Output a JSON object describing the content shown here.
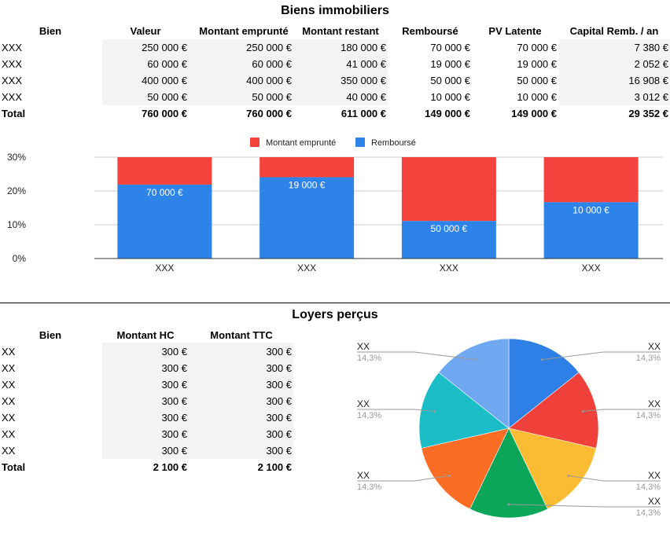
{
  "biens": {
    "title": "Biens immobiliers",
    "headers": [
      "Bien",
      "Valeur",
      "Montant emprunté",
      "Montant restant",
      "Remboursé",
      "PV Latente",
      "Capital Remb. / an"
    ],
    "rows": [
      [
        "XXX",
        "250 000 €",
        "250 000 €",
        "180 000 €",
        "70 000 €",
        "70 000 €",
        "7 380 €"
      ],
      [
        "XXX",
        "60 000 €",
        "60 000 €",
        "41 000 €",
        "19 000 €",
        "19 000 €",
        "2 052 €"
      ],
      [
        "XXX",
        "400 000 €",
        "400 000 €",
        "350 000 €",
        "50 000 €",
        "50 000 €",
        "16 908 €"
      ],
      [
        "XXX",
        "50 000 €",
        "50 000 €",
        "40 000 €",
        "10 000 €",
        "10 000 €",
        "3 012 €"
      ]
    ],
    "total": [
      "Total",
      "760 000 €",
      "760 000 €",
      "611 000 €",
      "149 000 €",
      "149 000 €",
      "29 352 €"
    ]
  },
  "loyers": {
    "title": "Loyers perçus",
    "headers": [
      "Bien",
      "Montant HC",
      "Montant TTC"
    ],
    "rows": [
      [
        "XX",
        "300 €",
        "300 €"
      ],
      [
        "XX",
        "300 €",
        "300 €"
      ],
      [
        "XX",
        "300 €",
        "300 €"
      ],
      [
        "XX",
        "300 €",
        "300 €"
      ],
      [
        "XX",
        "300 €",
        "300 €"
      ],
      [
        "XX",
        "300 €",
        "300 €"
      ],
      [
        "XX",
        "300 €",
        "300 €"
      ]
    ],
    "total": [
      "Total",
      "2 100 €",
      "2 100 €"
    ]
  },
  "chart_data": [
    {
      "type": "bar",
      "stacked": "percent",
      "title": "",
      "xlabel": "",
      "ylabel": "",
      "categories": [
        "XXX",
        "XXX",
        "XXX",
        "XXX"
      ],
      "series": [
        {
          "name": "Remboursé",
          "color": "#2e83e8",
          "values": [
            70000,
            19000,
            50000,
            10000
          ],
          "data_labels": [
            "70 000 €",
            "19 000 €",
            "50 000 €",
            "10 000 €"
          ]
        },
        {
          "name": "Montant emprunté",
          "color": "#f4433c",
          "values": [
            250000,
            60000,
            400000,
            50000
          ]
        }
      ],
      "legend_order": [
        "Montant emprunté",
        "Remboursé"
      ],
      "legend_position": "top",
      "ylim": [
        0,
        30
      ],
      "yticks": [
        "0%",
        "10%",
        "20%",
        "30%"
      ],
      "grid": true
    },
    {
      "type": "pie",
      "title": "",
      "slices": [
        {
          "label": "XX",
          "value": 300,
          "pct": "14,3%",
          "color": "#2e7fe6"
        },
        {
          "label": "XX",
          "value": 300,
          "pct": "14,3%",
          "color": "#f0403a"
        },
        {
          "label": "XX",
          "value": 300,
          "pct": "14,3%",
          "color": "#fbbc34"
        },
        {
          "label": "XX",
          "value": 300,
          "pct": "14,3%",
          "color": "#0ba65a"
        },
        {
          "label": "XX",
          "value": 300,
          "pct": "14,3%",
          "color": "#fb6d24"
        },
        {
          "label": "XX",
          "value": 300,
          "pct": "14,3%",
          "color": "#1bbdc6"
        },
        {
          "label": "XX",
          "value": 300,
          "pct": "14,3%",
          "color": "#6fa7f0"
        }
      ],
      "label_style": "outside-with-leader-lines"
    }
  ]
}
